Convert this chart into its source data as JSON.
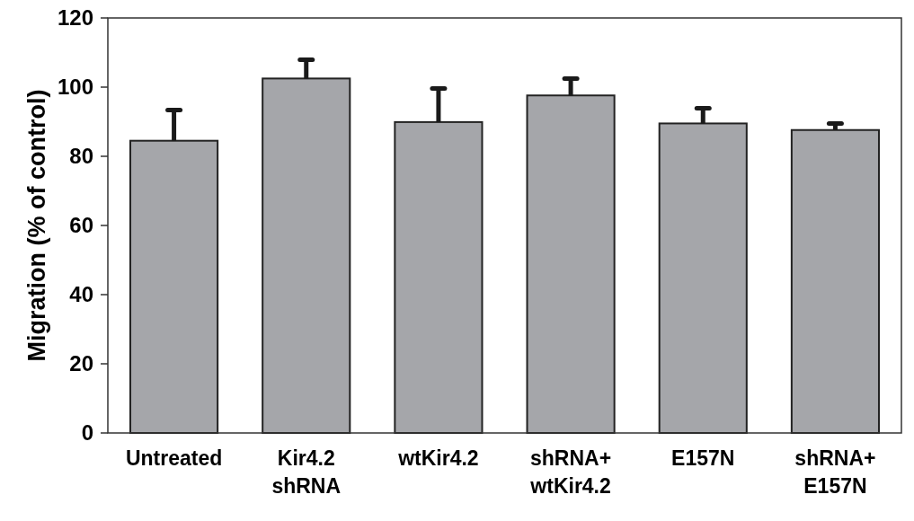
{
  "chart_data": {
    "type": "bar",
    "ylabel": "Migration (% of control)",
    "categories": [
      "Untreated",
      "Kir4.2 shRNA",
      "wtKir4.2",
      "shRNA+ wtKir4.2",
      "E157N",
      "shRNA+ E157N"
    ],
    "values": [
      84.5,
      102.5,
      89.9,
      97.6,
      89.5,
      87.6
    ],
    "errors": [
      [
        84.5,
        93.4
      ],
      [
        102.5,
        107.9
      ],
      [
        89.9,
        99.6
      ],
      [
        97.6,
        102.5
      ],
      [
        89.5,
        93.9
      ],
      [
        87.6,
        89.5
      ]
    ],
    "color": "#a5a6aa",
    "ylim": [
      0,
      120
    ],
    "yticks": [
      0,
      20,
      40,
      60,
      80,
      100,
      120
    ],
    "grid": false
  }
}
